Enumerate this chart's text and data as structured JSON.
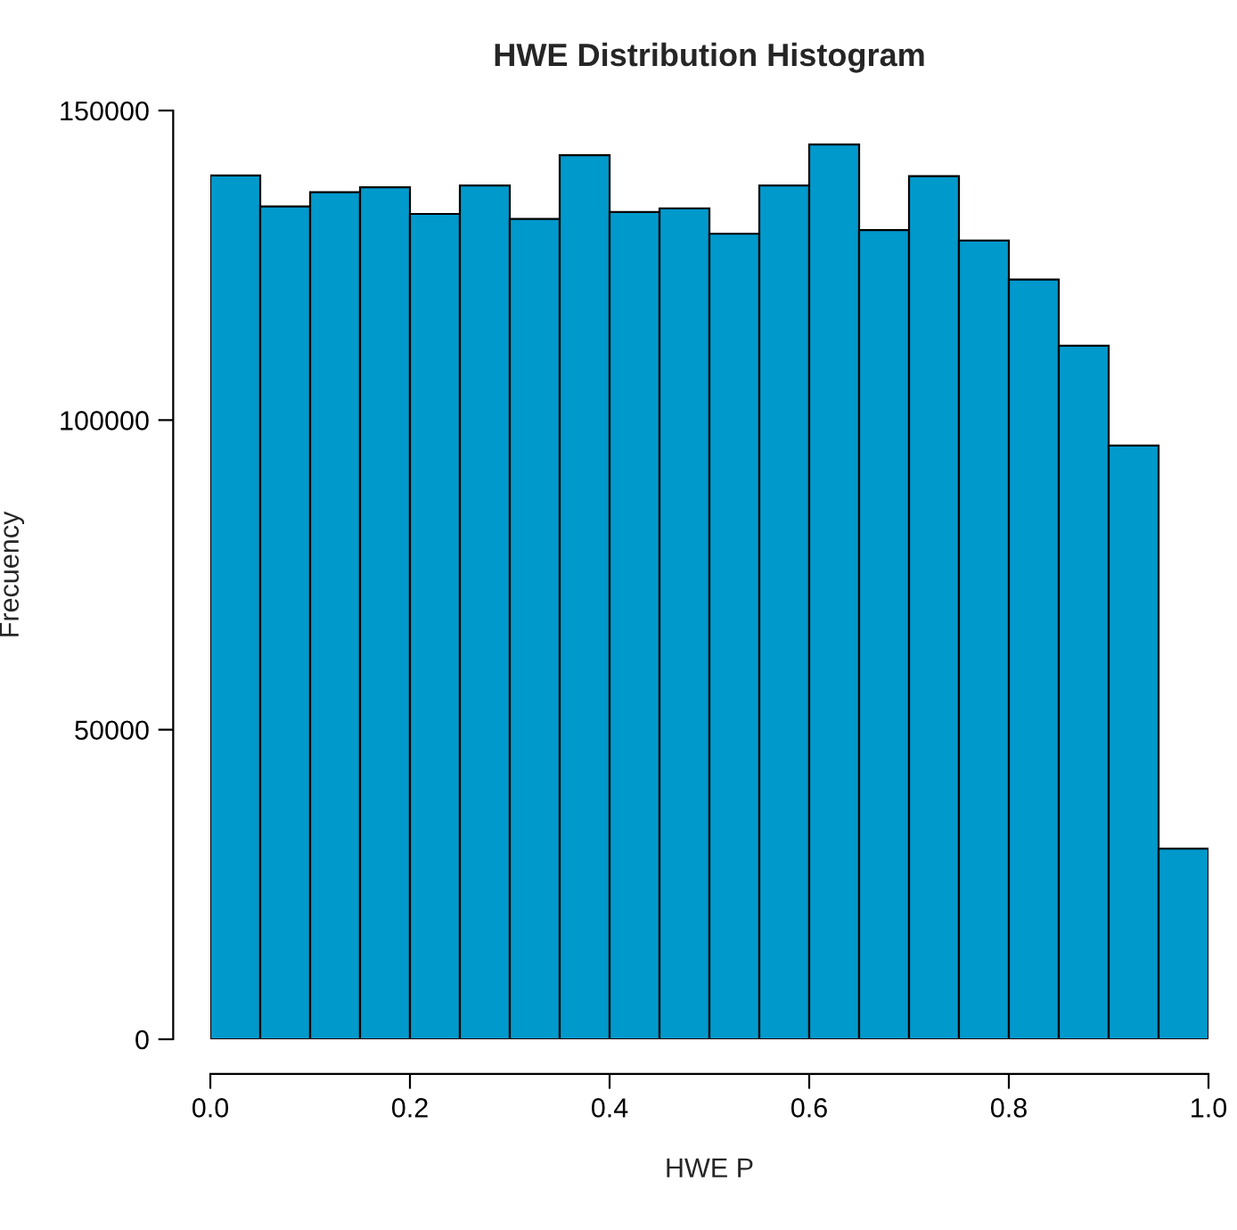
{
  "chart_data": {
    "type": "histogram",
    "title": "HWE Distribution Histogram",
    "xlabel": "HWE P",
    "ylabel": "Frecuency",
    "bins": [
      0.0,
      0.05,
      0.1,
      0.15,
      0.2,
      0.25,
      0.3,
      0.35,
      0.4,
      0.45,
      0.5,
      0.55,
      0.6,
      0.65,
      0.7,
      0.75,
      0.8,
      0.85,
      0.9,
      0.95,
      1.0
    ],
    "values": [
      139500,
      134500,
      136800,
      137600,
      133300,
      137900,
      132500,
      142800,
      133600,
      134200,
      130100,
      137900,
      144500,
      130700,
      139400,
      129000,
      122700,
      112000,
      95900,
      30800
    ],
    "color": "#0099cc",
    "xlim": [
      0,
      1
    ],
    "ylim": [
      0,
      150000
    ],
    "xticks": [
      {
        "value": 0,
        "label": "0.0"
      },
      0.2,
      0.4,
      0.6,
      0.8,
      {
        "value": 1,
        "label": "1.0"
      }
    ],
    "yticks": [
      0,
      50000,
      100000,
      150000
    ],
    "grid": false
  }
}
